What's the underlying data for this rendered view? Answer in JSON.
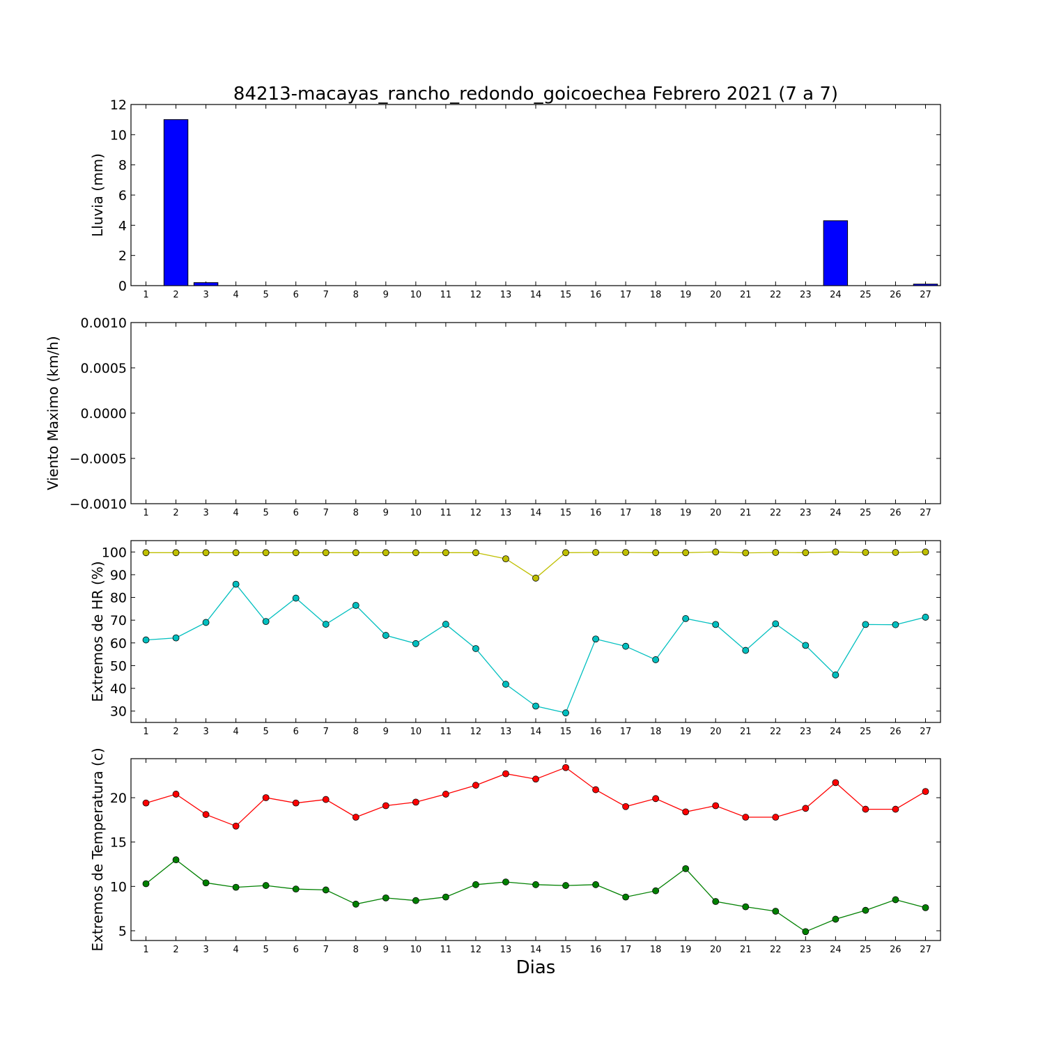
{
  "title": "84213-macayas_rancho_redondo_goicoechea Febrero 2021  (7 a 7)",
  "xlabel": "Dias",
  "chart_data": [
    {
      "type": "bar",
      "ylabel": "Lluvia (mm)",
      "x": [
        1,
        2,
        3,
        4,
        5,
        6,
        7,
        8,
        9,
        10,
        11,
        12,
        13,
        14,
        15,
        16,
        17,
        18,
        19,
        20,
        21,
        22,
        23,
        24,
        25,
        26,
        27
      ],
      "values": [
        0,
        11.0,
        0.2,
        0,
        0,
        0,
        0,
        0,
        0,
        0,
        0,
        0,
        0,
        0,
        0,
        0,
        0,
        0,
        0,
        0,
        0,
        0,
        0,
        4.3,
        0,
        0,
        0.1
      ],
      "ylim": [
        0,
        12
      ],
      "yticks": [
        0,
        2,
        4,
        6,
        8,
        10,
        12
      ],
      "ytick_labels": [
        "0",
        "2",
        "4",
        "6",
        "8",
        "10",
        "12"
      ],
      "xlim": [
        0.5,
        27.5
      ],
      "color": "#0000ff"
    },
    {
      "type": "line",
      "ylabel": "Viento Maximo (km/h)",
      "x": [
        1,
        2,
        3,
        4,
        5,
        6,
        7,
        8,
        9,
        10,
        11,
        12,
        13,
        14,
        15,
        16,
        17,
        18,
        19,
        20,
        21,
        22,
        23,
        24,
        25,
        26,
        27
      ],
      "series": [],
      "ylim": [
        -0.001,
        0.001
      ],
      "yticks": [
        -0.001,
        -0.0005,
        0,
        0.0005,
        0.001
      ],
      "ytick_labels": [
        "−0.0010",
        "−0.0005",
        "0.0000",
        "0.0005",
        "0.0010"
      ],
      "xlim": [
        0.5,
        27.5
      ]
    },
    {
      "type": "line",
      "ylabel": "Extremos de HR (%)",
      "x": [
        1,
        2,
        3,
        4,
        5,
        6,
        7,
        8,
        9,
        10,
        11,
        12,
        13,
        14,
        15,
        16,
        17,
        18,
        19,
        20,
        21,
        22,
        23,
        24,
        25,
        26,
        27
      ],
      "series": [
        {
          "values": [
            99.7,
            99.7,
            99.7,
            99.7,
            99.7,
            99.7,
            99.7,
            99.7,
            99.7,
            99.7,
            99.7,
            99.7,
            97.0,
            88.5,
            99.7,
            99.8,
            99.8,
            99.7,
            99.7,
            100.0,
            99.6,
            99.8,
            99.7,
            100.0,
            99.8,
            99.8,
            100.0
          ],
          "color": "#bfbf00"
        },
        {
          "values": [
            61.3,
            62.2,
            69.0,
            85.8,
            69.4,
            79.7,
            68.2,
            76.5,
            63.3,
            59.7,
            68.2,
            57.5,
            41.8,
            32.2,
            29.2,
            61.7,
            58.5,
            52.6,
            70.7,
            68.1,
            56.7,
            68.4,
            58.9,
            45.9,
            68.1,
            68.0,
            71.3
          ],
          "color": "#00bfbf"
        }
      ],
      "ylim": [
        25,
        105
      ],
      "yticks": [
        30,
        40,
        50,
        60,
        70,
        80,
        90,
        100
      ],
      "ytick_labels": [
        "30",
        "40",
        "50",
        "60",
        "70",
        "80",
        "90",
        "100"
      ],
      "xlim": [
        0.5,
        27.5
      ]
    },
    {
      "type": "line",
      "ylabel": "Extremos de Temperatura (c)",
      "x": [
        1,
        2,
        3,
        4,
        5,
        6,
        7,
        8,
        9,
        10,
        11,
        12,
        13,
        14,
        15,
        16,
        17,
        18,
        19,
        20,
        21,
        22,
        23,
        24,
        25,
        26,
        27
      ],
      "series": [
        {
          "values": [
            19.4,
            20.4,
            18.1,
            16.8,
            20.0,
            19.4,
            19.8,
            17.8,
            19.1,
            19.5,
            20.4,
            21.4,
            22.7,
            22.1,
            23.4,
            20.9,
            19.0,
            19.9,
            18.4,
            19.1,
            17.8,
            17.8,
            18.8,
            21.7,
            18.7,
            18.7,
            20.7
          ],
          "color": "#ff0000"
        },
        {
          "values": [
            10.3,
            13.0,
            10.4,
            9.9,
            10.1,
            9.7,
            9.6,
            8.0,
            8.7,
            8.4,
            8.8,
            10.2,
            10.5,
            10.2,
            10.1,
            10.2,
            8.8,
            9.5,
            12.0,
            8.3,
            7.7,
            7.2,
            4.9,
            6.3,
            7.3,
            8.5,
            7.6
          ],
          "color": "#008000"
        }
      ],
      "ylim": [
        3.9,
        24.4
      ],
      "yticks": [
        5,
        10,
        15,
        20
      ],
      "ytick_labels": [
        "5",
        "10",
        "15",
        "20"
      ],
      "xlim": [
        0.5,
        27.5
      ]
    }
  ]
}
